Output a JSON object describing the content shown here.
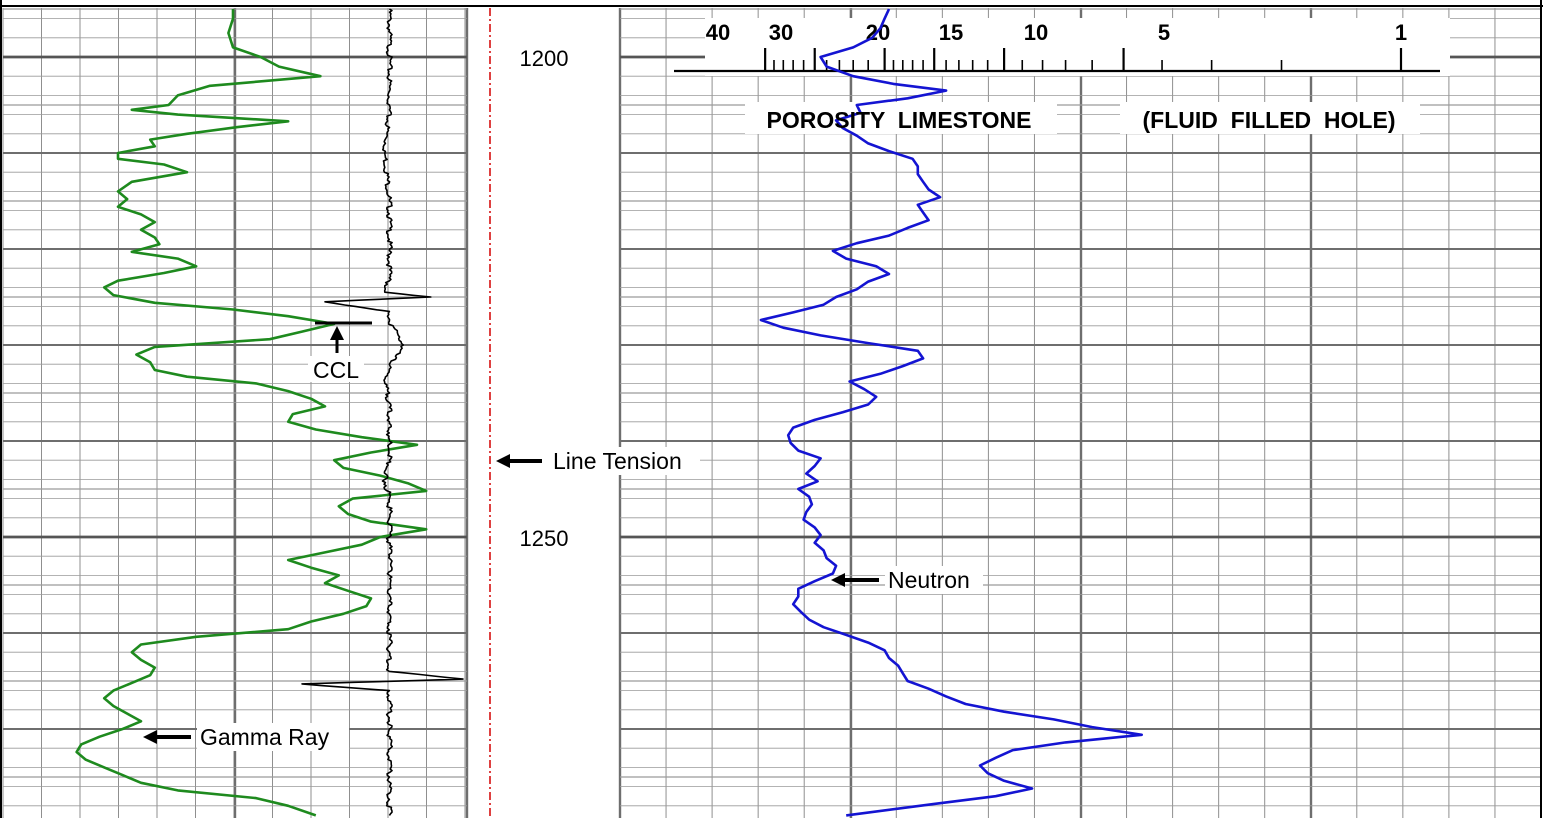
{
  "chart_data": {
    "type": "line",
    "title": "",
    "depth_axis": {
      "unit": "",
      "range": [
        1195,
        1279
      ],
      "labels": [
        "1200",
        "1250"
      ]
    },
    "porosity_scale": {
      "title": "POROSITY  LIMESTONE",
      "note": "(FLUID  FILLED  HOLE)",
      "tick_labels": [
        "40",
        "30",
        "20",
        "15",
        "10",
        "5",
        "1"
      ]
    },
    "series": [
      {
        "name": "Gamma Ray",
        "color": "#1e8a1e",
        "track": 1,
        "depth": [
          1195,
          1196,
          1197.5,
          1199,
          1200,
          1201,
          1202,
          1203,
          1204,
          1205,
          1205.5,
          1206,
          1206.7,
          1207.3,
          1208,
          1208.6,
          1209.3,
          1210,
          1210.6,
          1211.2,
          1212,
          1213,
          1214,
          1214.8,
          1215.6,
          1216.4,
          1217.2,
          1218,
          1218.8,
          1219.5,
          1220.3,
          1221,
          1221.8,
          1222.5,
          1223.3,
          1224,
          1224.8,
          1225.6,
          1226.3,
          1227,
          1227.8,
          1228.6,
          1229.4,
          1230.2,
          1231,
          1231.8,
          1232.6,
          1233.3,
          1234,
          1234.8,
          1235.6,
          1236.4,
          1237.2,
          1238,
          1238.8,
          1239.6,
          1240.4,
          1241.2,
          1242,
          1242.8,
          1243.6,
          1244.4,
          1245.2,
          1246,
          1246.8,
          1247.6,
          1248.4,
          1249.2,
          1250,
          1250.8,
          1251.6,
          1252.4,
          1253.2,
          1254,
          1254.8,
          1255.6,
          1256.4,
          1257.2,
          1258,
          1258.8,
          1259.6,
          1260.4,
          1261.2,
          1262,
          1262.8,
          1263.6,
          1264.4,
          1265.2,
          1266,
          1266.8,
          1267.6,
          1268.4,
          1269.2,
          1270,
          1270.8,
          1271.6,
          1272.4,
          1273.2,
          1274,
          1274.8,
          1275.6,
          1276.4,
          1277.2,
          1278,
          1279
        ],
        "values": [
          0.5,
          0.5,
          0.49,
          0.5,
          0.56,
          0.6,
          0.69,
          0.45,
          0.38,
          0.36,
          0.28,
          0.38,
          0.62,
          0.51,
          0.4,
          0.32,
          0.33,
          0.25,
          0.25,
          0.35,
          0.4,
          0.28,
          0.25,
          0.27,
          0.25,
          0.3,
          0.33,
          0.3,
          0.33,
          0.34,
          0.28,
          0.38,
          0.42,
          0.35,
          0.25,
          0.22,
          0.24,
          0.33,
          0.5,
          0.62,
          0.72,
          0.65,
          0.58,
          0.33,
          0.29,
          0.32,
          0.33,
          0.4,
          0.55,
          0.62,
          0.67,
          0.7,
          0.63,
          0.62,
          0.68,
          0.78,
          0.9,
          0.8,
          0.72,
          0.74,
          0.82,
          0.88,
          0.92,
          0.76,
          0.73,
          0.75,
          0.8,
          0.92,
          0.82,
          0.78,
          0.7,
          0.62,
          0.67,
          0.73,
          0.7,
          0.75,
          0.8,
          0.79,
          0.74,
          0.67,
          0.62,
          0.42,
          0.3,
          0.28,
          0.3,
          0.33,
          0.32,
          0.28,
          0.24,
          0.22,
          0.24,
          0.27,
          0.3,
          0.26,
          0.21,
          0.17,
          0.16,
          0.18,
          0.22,
          0.26,
          0.3,
          0.38,
          0.55,
          0.62,
          0.68
        ]
      },
      {
        "name": "CCL",
        "color": "#000000",
        "track": 1,
        "depth": [
          1195,
          1205,
          1210,
          1215,
          1223,
          1224.5,
          1225,
          1225.5,
          1226.5,
          1227.5,
          1230,
          1232,
          1234,
          1236,
          1238,
          1240,
          1242,
          1244,
          1246,
          1248,
          1250,
          1252,
          1254,
          1256,
          1258,
          1262,
          1264,
          1264.8,
          1265.3,
          1266,
          1270,
          1275,
          1279
        ],
        "values": [
          0.84,
          0.84,
          0.83,
          0.84,
          0.84,
          0.83,
          0.93,
          0.7,
          0.84,
          0.84,
          0.87,
          0.84,
          0.83,
          0.84,
          0.84,
          0.84,
          0.84,
          0.83,
          0.84,
          0.84,
          0.84,
          0.84,
          0.84,
          0.84,
          0.84,
          0.84,
          0.84,
          1.0,
          0.65,
          0.84,
          0.84,
          0.84,
          0.84
        ]
      },
      {
        "name": "Neutron",
        "color": "#1414d2",
        "track": 2,
        "depth": [
          1195,
          1196,
          1197,
          1198,
          1199,
          1200,
          1201,
          1202,
          1202.8,
          1203.5,
          1204.3,
          1205,
          1205.8,
          1206.6,
          1207.4,
          1208.2,
          1209,
          1209.8,
          1210.6,
          1211.4,
          1212.2,
          1213,
          1213.8,
          1214.6,
          1215.4,
          1216.2,
          1217,
          1217.8,
          1218.6,
          1219.4,
          1220.2,
          1221,
          1221.8,
          1222.6,
          1223.4,
          1224.2,
          1225,
          1225.8,
          1226.6,
          1227.4,
          1228.2,
          1229,
          1229.8,
          1230.6,
          1231.4,
          1232.2,
          1233,
          1233.8,
          1234.6,
          1235.4,
          1236.2,
          1237,
          1237.8,
          1238.6,
          1239.4,
          1240.2,
          1241,
          1241.8,
          1242.6,
          1243.4,
          1244.2,
          1245,
          1245.8,
          1246.6,
          1247.4,
          1248.2,
          1249,
          1249.8,
          1250.6,
          1251.4,
          1252.2,
          1253,
          1253.8,
          1254.6,
          1255.4,
          1256.2,
          1257,
          1257.8,
          1258.6,
          1259.4,
          1260.2,
          1261,
          1261.8,
          1262.6,
          1263.4,
          1264.2,
          1265,
          1265.8,
          1266.6,
          1267.4,
          1268.2,
          1269,
          1269.8,
          1270.6,
          1271.4,
          1272.2,
          1273,
          1273.8,
          1274.6,
          1275.4,
          1276.2,
          1277,
          1277.8,
          1279
        ],
        "values": [
          19.5,
          20.0,
          20.5,
          21.5,
          24.0,
          29.0,
          28.0,
          24.0,
          19.0,
          14.0,
          17.5,
          23.5,
          23.0,
          26.5,
          25.5,
          23.5,
          22.0,
          19.5,
          17.0,
          16.5,
          16.5,
          16.0,
          15.5,
          14.5,
          16.5,
          16.0,
          15.5,
          17.5,
          19.5,
          23.5,
          27.0,
          25.0,
          21.0,
          19.5,
          22.0,
          23.5,
          26.5,
          28.5,
          34.0,
          41.0,
          36.0,
          29.0,
          22.0,
          16.5,
          16.0,
          18.0,
          20.5,
          24.5,
          22.5,
          21.0,
          22.0,
          25.5,
          30.0,
          34.0,
          35.0,
          34.5,
          33.0,
          29.0,
          30.0,
          31.5,
          29.5,
          33.0,
          31.0,
          30.5,
          31.5,
          32.0,
          30.0,
          29.0,
          30.0,
          28.5,
          28.0,
          26.5,
          27.0,
          30.0,
          33.0,
          33.0,
          34.0,
          32.5,
          31.0,
          28.5,
          25.0,
          22.0,
          20.0,
          19.5,
          18.5,
          18.0,
          17.5,
          15.5,
          14.0,
          12.5,
          10.0,
          7.5,
          6.0,
          4.5,
          7.0,
          9.5,
          10.5,
          11.5,
          11.0,
          10.0,
          8.5,
          10.5,
          15.0,
          25.0,
          42.0
        ]
      },
      {
        "name": "Line Tension",
        "color": "#d40000",
        "track": "depth",
        "depth": [
          1195,
          1279
        ],
        "values": [
          0.5,
          0.5
        ]
      }
    ],
    "annotations": [
      {
        "text": "CCL",
        "series": "CCL"
      },
      {
        "text": "Line Tension",
        "series": "Line Tension"
      },
      {
        "text": "Neutron",
        "series": "Neutron"
      },
      {
        "text": "Gamma Ray",
        "series": "Gamma Ray"
      }
    ],
    "grid": true,
    "legend": "none"
  }
}
